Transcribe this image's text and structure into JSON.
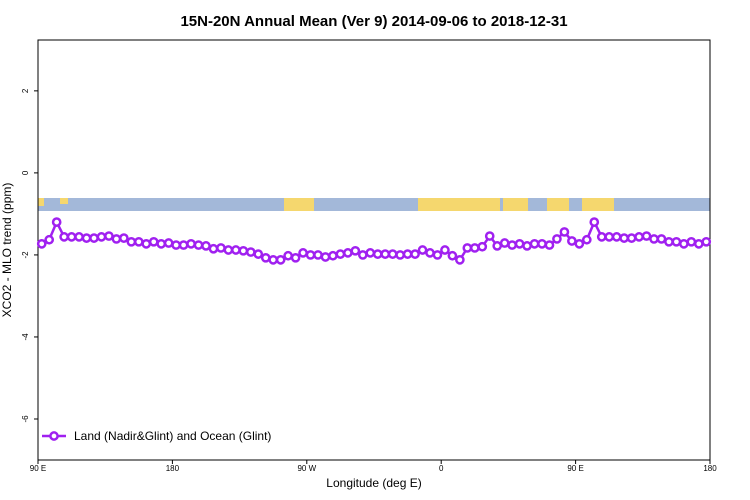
{
  "chart_data": {
    "type": "line",
    "title": "15N-20N Annual Mean (Ver 9)   2014-09-06 to 2018-12-31",
    "x_label": "Longitude (deg E)",
    "y_label": "XCO2 - MLO trend (ppm)",
    "xlim": [
      90,
      540
    ],
    "ylim": [
      -7,
      3.24
    ],
    "xticks": [
      {
        "value": 90,
        "label": "90 E"
      },
      {
        "value": 180,
        "label": "180"
      },
      {
        "value": 270,
        "label": "90 W"
      },
      {
        "value": 360,
        "label": "0"
      },
      {
        "value": 450,
        "label": "90 E"
      },
      {
        "value": 540,
        "label": "180"
      }
    ],
    "yticks": [
      -6,
      -4,
      -2,
      0,
      2
    ],
    "legend_position": "bottom-left",
    "x": [
      92.5,
      97.5,
      102.5,
      107.5,
      112.5,
      117.5,
      122.5,
      127.5,
      132.5,
      137.5,
      142.5,
      147.5,
      152.5,
      157.5,
      162.5,
      167.5,
      172.5,
      177.5,
      182.5,
      187.5,
      192.5,
      197.5,
      202.5,
      207.5,
      212.5,
      217.5,
      222.5,
      227.5,
      232.5,
      237.5,
      242.5,
      247.5,
      252.5,
      257.5,
      262.5,
      267.5,
      272.5,
      277.5,
      282.5,
      287.5,
      292.5,
      297.5,
      302.5,
      307.5,
      312.5,
      317.5,
      322.5,
      327.5,
      332.5,
      337.5,
      342.5,
      347.5,
      352.5,
      357.5,
      362.5,
      367.5,
      372.5,
      377.5,
      382.5,
      387.5,
      392.5,
      397.5,
      402.5,
      407.5,
      412.5,
      417.5,
      422.5,
      427.5,
      432.5,
      437.5,
      442.5,
      447.5,
      452.5,
      457.5,
      462.5,
      467.5,
      472.5,
      477.5,
      482.5,
      487.5,
      492.5,
      497.5,
      502.5,
      507.5,
      512.5,
      517.5,
      522.5,
      527.5,
      532.5,
      537.5
    ],
    "series": [
      {
        "name": "Land (Nadir&Glint) and Ocean (Glint)",
        "color": "#a020f0",
        "values": [
          -1.73,
          -1.63,
          -1.2,
          -1.56,
          -1.56,
          -1.56,
          -1.59,
          -1.59,
          -1.56,
          -1.54,
          -1.61,
          -1.59,
          -1.68,
          -1.68,
          -1.73,
          -1.68,
          -1.73,
          -1.71,
          -1.76,
          -1.76,
          -1.73,
          -1.76,
          -1.78,
          -1.85,
          -1.83,
          -1.88,
          -1.88,
          -1.9,
          -1.93,
          -1.98,
          -2.07,
          -2.12,
          -2.12,
          -2.02,
          -2.07,
          -1.95,
          -2.0,
          -2.0,
          -2.05,
          -2.02,
          -1.98,
          -1.95,
          -1.9,
          -2.0,
          -1.95,
          -1.98,
          -1.98,
          -1.98,
          -2.0,
          -1.98,
          -1.98,
          -1.88,
          -1.95,
          -2.0,
          -1.88,
          -2.02,
          -2.12,
          -1.83,
          -1.83,
          -1.8,
          -1.54,
          -1.78,
          -1.71,
          -1.76,
          -1.73,
          -1.78,
          -1.73,
          -1.73,
          -1.76,
          -1.61,
          -1.44,
          -1.66,
          -1.73,
          -1.63,
          -1.2,
          -1.56,
          -1.56,
          -1.56,
          -1.59,
          -1.59,
          -1.56,
          -1.54,
          -1.61,
          -1.61,
          -1.68,
          -1.68,
          -1.73,
          -1.68,
          -1.73,
          -1.68
        ]
      }
    ]
  }
}
